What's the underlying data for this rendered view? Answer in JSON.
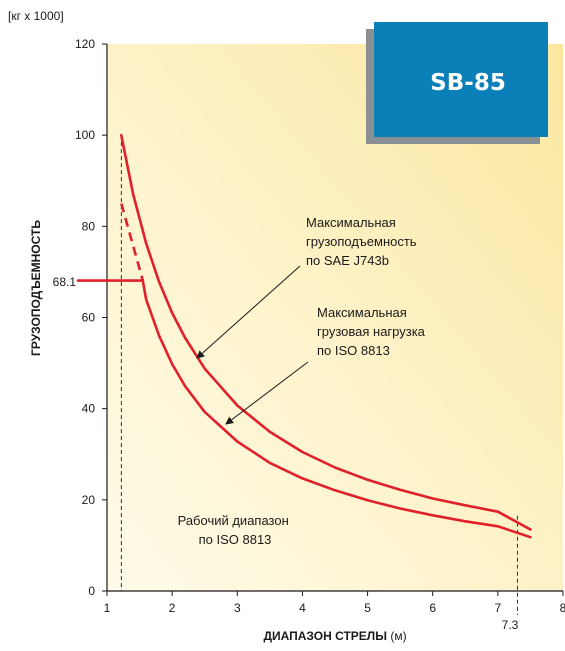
{
  "chart_data": {
    "type": "line",
    "title": "SB-85",
    "unit_label": "[кг x 1000]",
    "ylabel": "ГРУЗОПОДЪЕМНОСТЬ",
    "xlabel_bold": "ДИАПАЗОН СТРЕЛЫ",
    "xlabel_unit": " (м)",
    "xlim": [
      1,
      8
    ],
    "ylim": [
      0,
      120
    ],
    "x_ticks": [
      "1",
      "2",
      "3",
      "4",
      "5",
      "6",
      "7",
      "8"
    ],
    "y_ticks": [
      "0",
      "20",
      "40",
      "60",
      "80",
      "100",
      "120"
    ],
    "grid": false,
    "series": [
      {
        "name": "Максимальная грузоподъемность по SAE J743b",
        "x": [
          1.22,
          1.4,
          1.6,
          1.8,
          2.0,
          2.2,
          2.5,
          3.0,
          3.5,
          4.0,
          4.5,
          5.0,
          5.5,
          6.0,
          6.5,
          7.0,
          7.5
        ],
        "y": [
          100.0,
          87.1,
          76.3,
          67.8,
          61.0,
          55.5,
          48.8,
          40.7,
          34.9,
          30.5,
          27.1,
          24.4,
          22.2,
          20.3,
          18.8,
          17.4,
          13.5
        ]
      },
      {
        "name": "Максимальная грузовая нагрузка по ISO 8813",
        "x": [
          1.0,
          1.55,
          1.6,
          1.8,
          2.0,
          2.2,
          2.5,
          3.0,
          3.5,
          4.0,
          4.5,
          5.0,
          5.5,
          6.0,
          6.5,
          7.0,
          7.5
        ],
        "y": [
          68.1,
          68.1,
          64.0,
          56.0,
          49.8,
          44.9,
          39.3,
          32.8,
          28.1,
          24.7,
          22.1,
          19.9,
          18.1,
          16.6,
          15.3,
          14.2,
          11.8
        ]
      }
    ],
    "dashed_segment": {
      "x": [
        1.22,
        1.55
      ],
      "y": [
        85.0,
        68.1
      ]
    },
    "annotations": {
      "ref_y_label": "68.1",
      "ref_x_label": "7.3",
      "ref_x_min": 1.22,
      "ref_x_max": 7.3,
      "sae_lines": [
        "Максимальная",
        "грузоподъемность",
        "по  SAE  J743b"
      ],
      "iso_lines": [
        "Максимальная",
        "грузовая  нагрузка",
        "по  ISO  8813"
      ],
      "range_lines": [
        "Рабочий  диапазон",
        "по  ISO  8813"
      ]
    },
    "colors": {
      "curve": "#e0202a",
      "badge": "#0a7fb8",
      "badge_shadow": "#8a8f94",
      "bg_top_right": "#fbe7a0",
      "bg_bottom_left": "#fffbe9"
    }
  }
}
